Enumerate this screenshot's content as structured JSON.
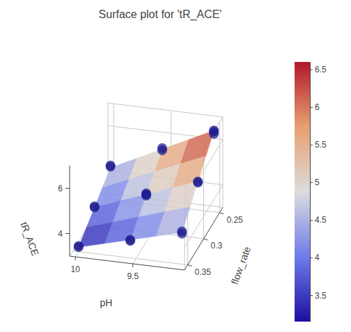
{
  "chart_data": {
    "type": "surface3d",
    "title": "Surface plot for 'tR_ACE'",
    "x_label": "pH",
    "y_label": "flow_rate",
    "z_label": "tR_ACE",
    "xlim": [
      9.05,
      10.05
    ],
    "xticks": [
      9.5,
      10
    ],
    "ylim": [
      0.24,
      0.36
    ],
    "yticks": [
      0.25,
      0.3,
      0.35
    ],
    "zlim": [
      3,
      7
    ],
    "zticks": [
      4,
      6
    ],
    "grid": true,
    "surface": {
      "x": [
        10.0,
        9.775,
        9.55,
        9.325,
        9.1
      ],
      "y": [
        0.35,
        0.325,
        0.3,
        0.275,
        0.25
      ],
      "z": [
        [
          3.2,
          3.5,
          3.8,
          4.1,
          4.4
        ],
        [
          3.5,
          3.86,
          4.23,
          4.59,
          4.95
        ],
        [
          3.8,
          4.23,
          4.65,
          5.08,
          5.5
        ],
        [
          4.1,
          4.59,
          5.08,
          5.56,
          6.05
        ],
        [
          4.4,
          4.95,
          5.5,
          6.05,
          6.6
        ]
      ]
    },
    "points": {
      "x": [
        10,
        10,
        10,
        10,
        10,
        10,
        9.55,
        9.55,
        9.55,
        9.55,
        9.55,
        9.55,
        9.55,
        9.1,
        9.1,
        9.1,
        9.1,
        9.1,
        9.1,
        9.1
      ],
      "y": [
        0.35,
        0.35,
        0.3,
        0.3,
        0.25,
        0.25,
        0.35,
        0.35,
        0.3,
        0.3,
        0.3,
        0.25,
        0.25,
        0.35,
        0.35,
        0.3,
        0.3,
        0.25,
        0.25,
        0.25
      ],
      "z": [
        3.2,
        3.25,
        3.85,
        3.8,
        4.45,
        4.5,
        3.8,
        3.75,
        4.6,
        4.7,
        4.65,
        5.45,
        5.55,
        4.35,
        4.45,
        5.5,
        5.45,
        6.55,
        6.6,
        6.45
      ],
      "color": "#1c1a8f",
      "marker": "circle"
    },
    "colorbar": {
      "range": [
        3.15,
        6.6
      ],
      "ticks": [
        3.5,
        4,
        4.5,
        5,
        5.5,
        6,
        6.5
      ]
    }
  }
}
